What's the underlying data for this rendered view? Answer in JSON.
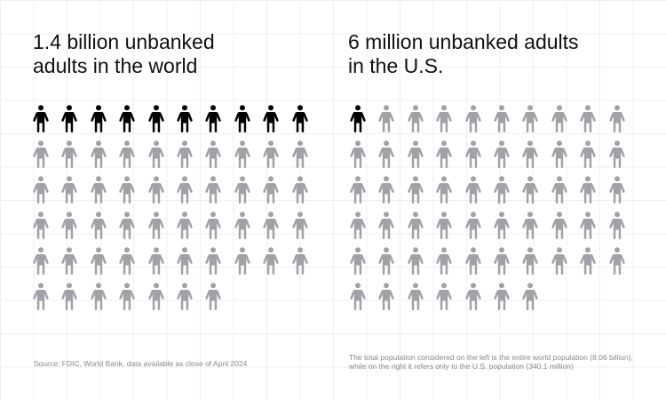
{
  "chart_data": {
    "type": "pictogram",
    "colors": {
      "highlight": "#000000",
      "base": "#a1a1a8"
    },
    "columns": 10,
    "panels": [
      {
        "title_line1": "1.4 billion unbanked",
        "title_line2": "adults in the world",
        "highlighted": 10,
        "total": 57,
        "icon": "person-icon"
      },
      {
        "title_line1": "6 million unbanked adults",
        "title_line2": "in the U.S.",
        "highlighted": 1,
        "total": 57,
        "icon": "person-icon"
      }
    ]
  },
  "footer": {
    "source": "Source: FDIC, World Bank, data available as close of April 2024",
    "note": "The total population considered on the left is the entire world population (8.06 billion), while on the right it refers only to the U.S. population (340.1 million)"
  }
}
